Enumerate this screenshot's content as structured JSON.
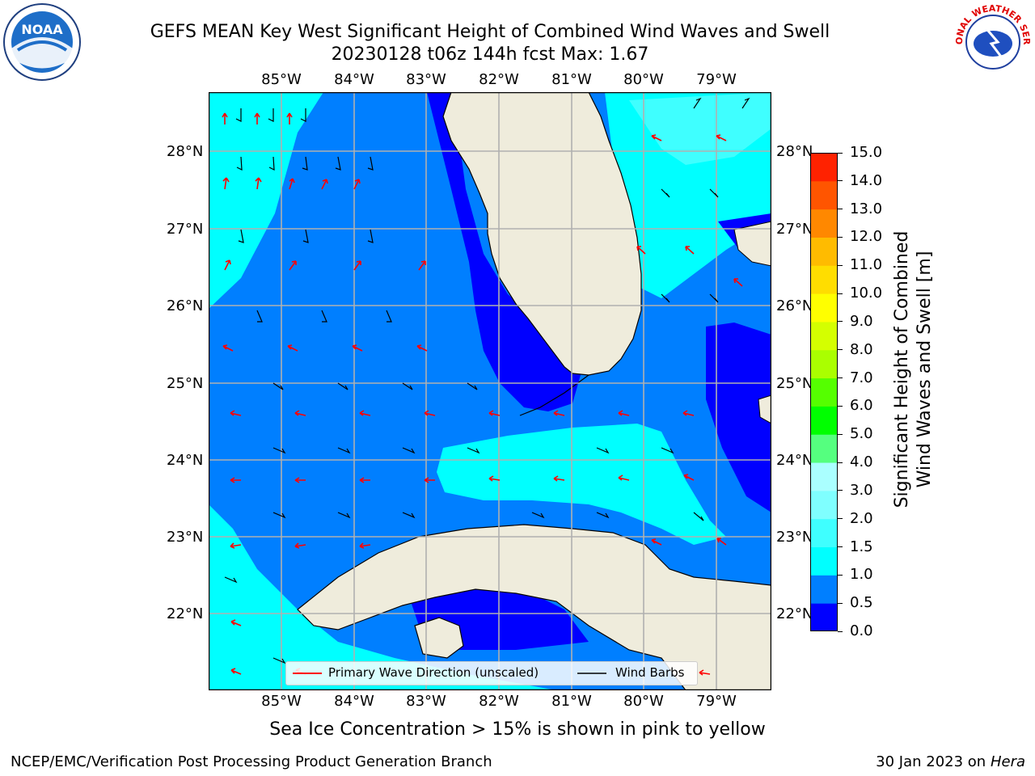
{
  "header": {
    "title_line1": "GEFS MEAN Key West Significant Height of Combined Wind Waves and Swell",
    "title_line2": "20230128 t06z 144h fcst   Max: 1.67"
  },
  "logos": {
    "left_name": "noaa-logo",
    "left_text": "NOAA",
    "right_name": "nws-logo",
    "right_text": "NATIONAL WEATHER SERVICE"
  },
  "map": {
    "longitude_labels": [
      "85°W",
      "84°W",
      "83°W",
      "82°W",
      "81°W",
      "80°W",
      "79°W"
    ],
    "latitude_labels": [
      "28°N",
      "27°N",
      "26°N",
      "25°N",
      "24°N",
      "23°N",
      "22°N"
    ],
    "colors": {
      "land": "#efecdc",
      "coast": "#000000",
      "grid": "#b0b0b0",
      "wave_arrow": "#ff0000",
      "wind_barb": "#000000"
    }
  },
  "legend": {
    "primary_wave": "Primary Wave Direction (unscaled)",
    "wind_barbs": "Wind Barbs"
  },
  "colorbar": {
    "label_line1": "Significant Height of Combined",
    "label_line2": "Wind Waves and Swell [m]",
    "ticks": [
      "0.0",
      "0.5",
      "1.0",
      "1.5",
      "2.0",
      "3.0",
      "4.0",
      "5.0",
      "6.0",
      "7.0",
      "8.0",
      "9.0",
      "10.0",
      "11.0",
      "12.0",
      "13.0",
      "14.0",
      "15.0"
    ],
    "colors": [
      "#0000ff",
      "#007fff",
      "#00ffff",
      "#3fffff",
      "#7fffff",
      "#aaffff",
      "#55ff7f",
      "#00ff00",
      "#55ff00",
      "#aaff00",
      "#d4ff00",
      "#ffff00",
      "#ffdd00",
      "#ffbb00",
      "#ff8800",
      "#ff5500",
      "#ff2200"
    ]
  },
  "footer": {
    "ice_note": "Sea Ice Concentration > 15% is shown in pink to yellow",
    "left": "NCEP/EMC/Verification Post Processing Product Generation Branch",
    "right_date": "30 Jan 2023 on ",
    "right_host": "Hera"
  }
}
